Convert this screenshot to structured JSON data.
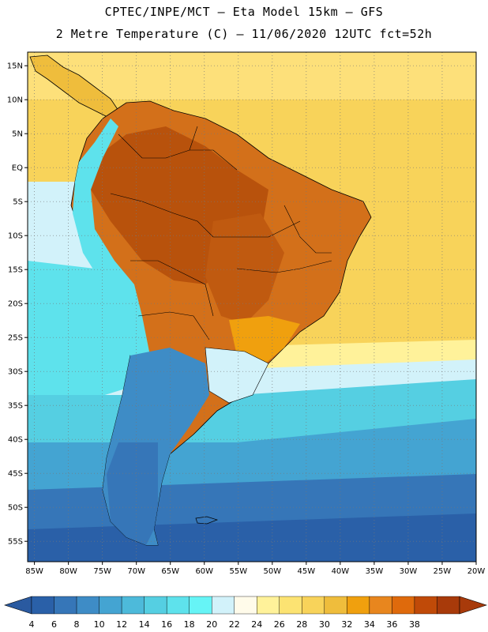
{
  "header": {
    "line1": "CPTEC/INPE/MCT –  Eta Model 15km – GFS",
    "line2": "2 Metre Temperature (C) – 11/06/2020 12UTC fct=52h"
  },
  "map": {
    "lat_labels": [
      "15N",
      "10N",
      "5N",
      "EQ",
      "5S",
      "10S",
      "15S",
      "20S",
      "25S",
      "30S",
      "35S",
      "40S",
      "45S",
      "50S",
      "55S"
    ],
    "lat_values": [
      15,
      10,
      5,
      0,
      -5,
      -10,
      -15,
      -20,
      -25,
      -30,
      -35,
      -40,
      -45,
      -50,
      -55
    ],
    "lon_labels": [
      "85W",
      "80W",
      "75W",
      "70W",
      "65W",
      "60W",
      "55W",
      "50W",
      "45W",
      "40W",
      "35W",
      "30W",
      "25W",
      "20W"
    ],
    "lon_values": [
      -85,
      -80,
      -75,
      -70,
      -65,
      -60,
      -55,
      -50,
      -45,
      -40,
      -35,
      -30,
      -25,
      -20
    ],
    "extent": {
      "lon_min": -86,
      "lon_max": -20,
      "lat_min": -58,
      "lat_max": 17
    },
    "gridlines": "dotted"
  },
  "colorbar": {
    "labels": [
      "4",
      "6",
      "8",
      "10",
      "12",
      "14",
      "16",
      "18",
      "20",
      "22",
      "24",
      "26",
      "28",
      "30",
      "32",
      "34",
      "36",
      "38"
    ],
    "colors": [
      "#2a60a8",
      "#3676b8",
      "#3e8cc6",
      "#44a4d2",
      "#4dbada",
      "#55cfe2",
      "#5ee2ec",
      "#66f4f6",
      "#d2f2fa",
      "#fffbea",
      "#fff29a",
      "#fce372",
      "#f8d35a",
      "#efbd3c",
      "#f0a00e",
      "#e8861e",
      "#df6a0c",
      "#c04a08",
      "#a83a0a"
    ],
    "under_color": "#2a5aa0",
    "over_color": "#a83a0a"
  }
}
